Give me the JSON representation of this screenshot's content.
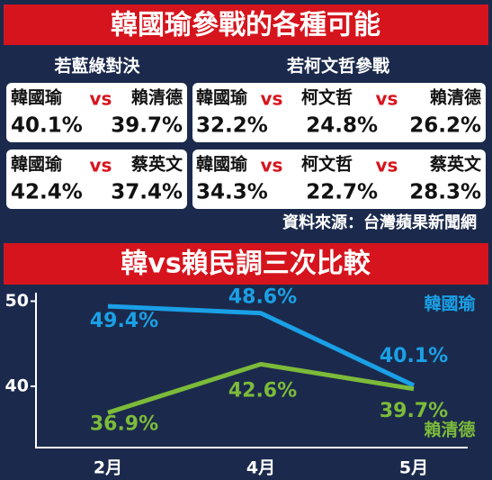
{
  "header": {
    "title": "韓國瑜參戰的各種可能"
  },
  "separator": "vs",
  "scenarios": [
    {
      "label": "若藍綠對決",
      "boxes": [
        {
          "names": [
            "韓國瑜",
            "賴清德"
          ],
          "values": [
            "40.1%",
            "39.7%"
          ]
        },
        {
          "names": [
            "韓國瑜",
            "蔡英文"
          ],
          "values": [
            "42.4%",
            "37.4%"
          ]
        }
      ]
    },
    {
      "label": "若柯文哲參戰",
      "boxes": [
        {
          "names": [
            "韓國瑜",
            "柯文哲",
            "賴清德"
          ],
          "values": [
            "32.2%",
            "24.8%",
            "26.2%"
          ]
        },
        {
          "names": [
            "韓國瑜",
            "柯文哲",
            "蔡英文"
          ],
          "values": [
            "34.3%",
            "22.7%",
            "28.3%"
          ]
        }
      ]
    }
  ],
  "source": "資料來源：台灣蘋果新聞網",
  "chart_data": {
    "type": "line",
    "title": "韓vs賴民調三次比較",
    "categories": [
      "2月",
      "4月",
      "5月"
    ],
    "series": [
      {
        "name": "韓國瑜",
        "color": "#1aa0e6",
        "values": [
          49.4,
          48.6,
          40.1
        ],
        "value_labels": [
          "49.4%",
          "48.6%",
          "40.1%"
        ]
      },
      {
        "name": "賴清德",
        "color": "#7cbb3a",
        "values": [
          36.9,
          42.6,
          39.7
        ],
        "value_labels": [
          "36.9%",
          "42.6%",
          "39.7%"
        ]
      }
    ],
    "ylim": [
      32.8,
      51
    ],
    "yticks": [
      40,
      50
    ]
  }
}
